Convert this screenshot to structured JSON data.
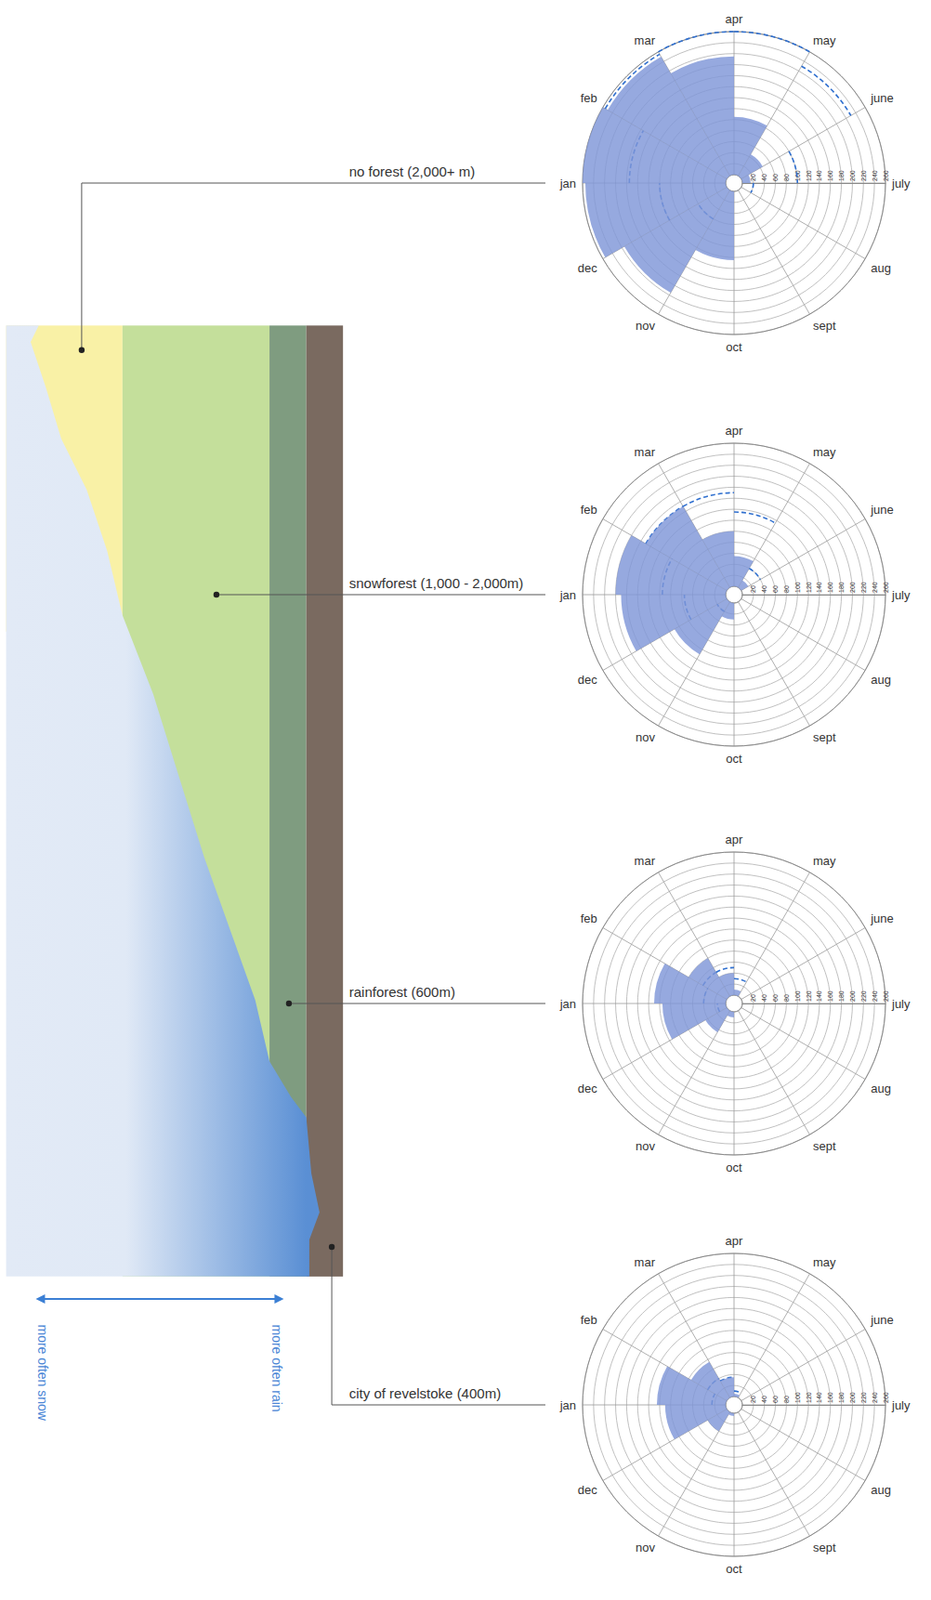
{
  "chart_data": [
    {
      "type": "polar_bar",
      "title": "no forest (2,000+ m)",
      "categories": [
        "jan",
        "feb",
        "mar",
        "apr",
        "may",
        "june",
        "july",
        "aug",
        "sept",
        "oct",
        "nov",
        "dec"
      ],
      "series": [
        {
          "type": "bar",
          "color": "#7f96d8",
          "values": [
            260,
            250,
            215,
            105,
            45,
            15,
            0,
            0,
            0,
            125,
            215,
            255
          ]
        },
        {
          "type": "line",
          "line_style": "dashed",
          "color": "#2f6fcf",
          "values": [
            175,
            255,
            260,
            260,
            230,
            100,
            20,
            null,
            null,
            null,
            60,
            120
          ]
        }
      ],
      "ylim": [
        0,
        260
      ],
      "yticks": [
        20,
        40,
        60,
        80,
        100,
        120,
        140,
        160,
        180,
        200,
        220,
        240,
        260
      ],
      "grid": true
    },
    {
      "type": "polar_bar",
      "title": "snowforest (1,000 - 2,000m)",
      "categories": [
        "jan",
        "feb",
        "mar",
        "apr",
        "may",
        "june",
        "july",
        "aug",
        "sept",
        "oct",
        "nov",
        "dec"
      ],
      "series": [
        {
          "type": "bar",
          "color": "#7f96d8",
          "values": [
            200,
            170,
            100,
            55,
            15,
            0,
            0,
            0,
            0,
            30,
            110,
            190
          ]
        },
        {
          "type": "line",
          "line_style": "dashed",
          "color": "#2f6fcf",
          "values": [
            115,
            170,
            170,
            135,
            40,
            null,
            null,
            null,
            null,
            null,
            20,
            75
          ]
        }
      ],
      "ylim": [
        0,
        260
      ],
      "yticks": [
        20,
        40,
        60,
        80,
        100,
        120,
        140,
        160,
        180,
        200,
        220,
        240,
        260
      ],
      "grid": true
    },
    {
      "type": "polar_bar",
      "title": "rainforest (600m)",
      "categories": [
        "jan",
        "feb",
        "mar",
        "apr",
        "may",
        "june",
        "july",
        "aug",
        "sept",
        "oct",
        "nov",
        "dec"
      ],
      "series": [
        {
          "type": "bar",
          "color": "#7f96d8",
          "values": [
            130,
            80,
            40,
            10,
            0,
            0,
            0,
            0,
            0,
            10,
            45,
            115
          ]
        },
        {
          "type": "line",
          "line_style": "dashed",
          "color": "#2f6fcf",
          "values": [
            40,
            50,
            50,
            30,
            null,
            null,
            null,
            null,
            null,
            null,
            null,
            15
          ]
        }
      ],
      "ylim": [
        0,
        260
      ],
      "yticks": [
        20,
        40,
        60,
        80,
        100,
        120,
        140,
        160,
        180,
        200,
        220,
        240,
        260
      ],
      "grid": true
    },
    {
      "type": "polar_bar",
      "title": "city of revelstoke (400m)",
      "categories": [
        "jan",
        "feb",
        "mar",
        "apr",
        "may",
        "june",
        "july",
        "aug",
        "sept",
        "oct",
        "nov",
        "dec"
      ],
      "series": [
        {
          "type": "bar",
          "color": "#7f96d8",
          "values": [
            125,
            75,
            35,
            5,
            0,
            0,
            0,
            0,
            0,
            5,
            40,
            110
          ]
        },
        {
          "type": "line",
          "line_style": "dashed",
          "color": "#2f6fcf",
          "values": [
            25,
            40,
            35,
            10,
            null,
            null,
            null,
            null,
            null,
            null,
            null,
            null
          ]
        }
      ],
      "ylim": [
        0,
        260
      ],
      "yticks": [
        20,
        40,
        60,
        80,
        100,
        120,
        140,
        160,
        180,
        200,
        220,
        240,
        260
      ],
      "grid": true
    }
  ],
  "diagram": {
    "arrow": {
      "left": "more often snow",
      "right": "more often rain"
    }
  }
}
